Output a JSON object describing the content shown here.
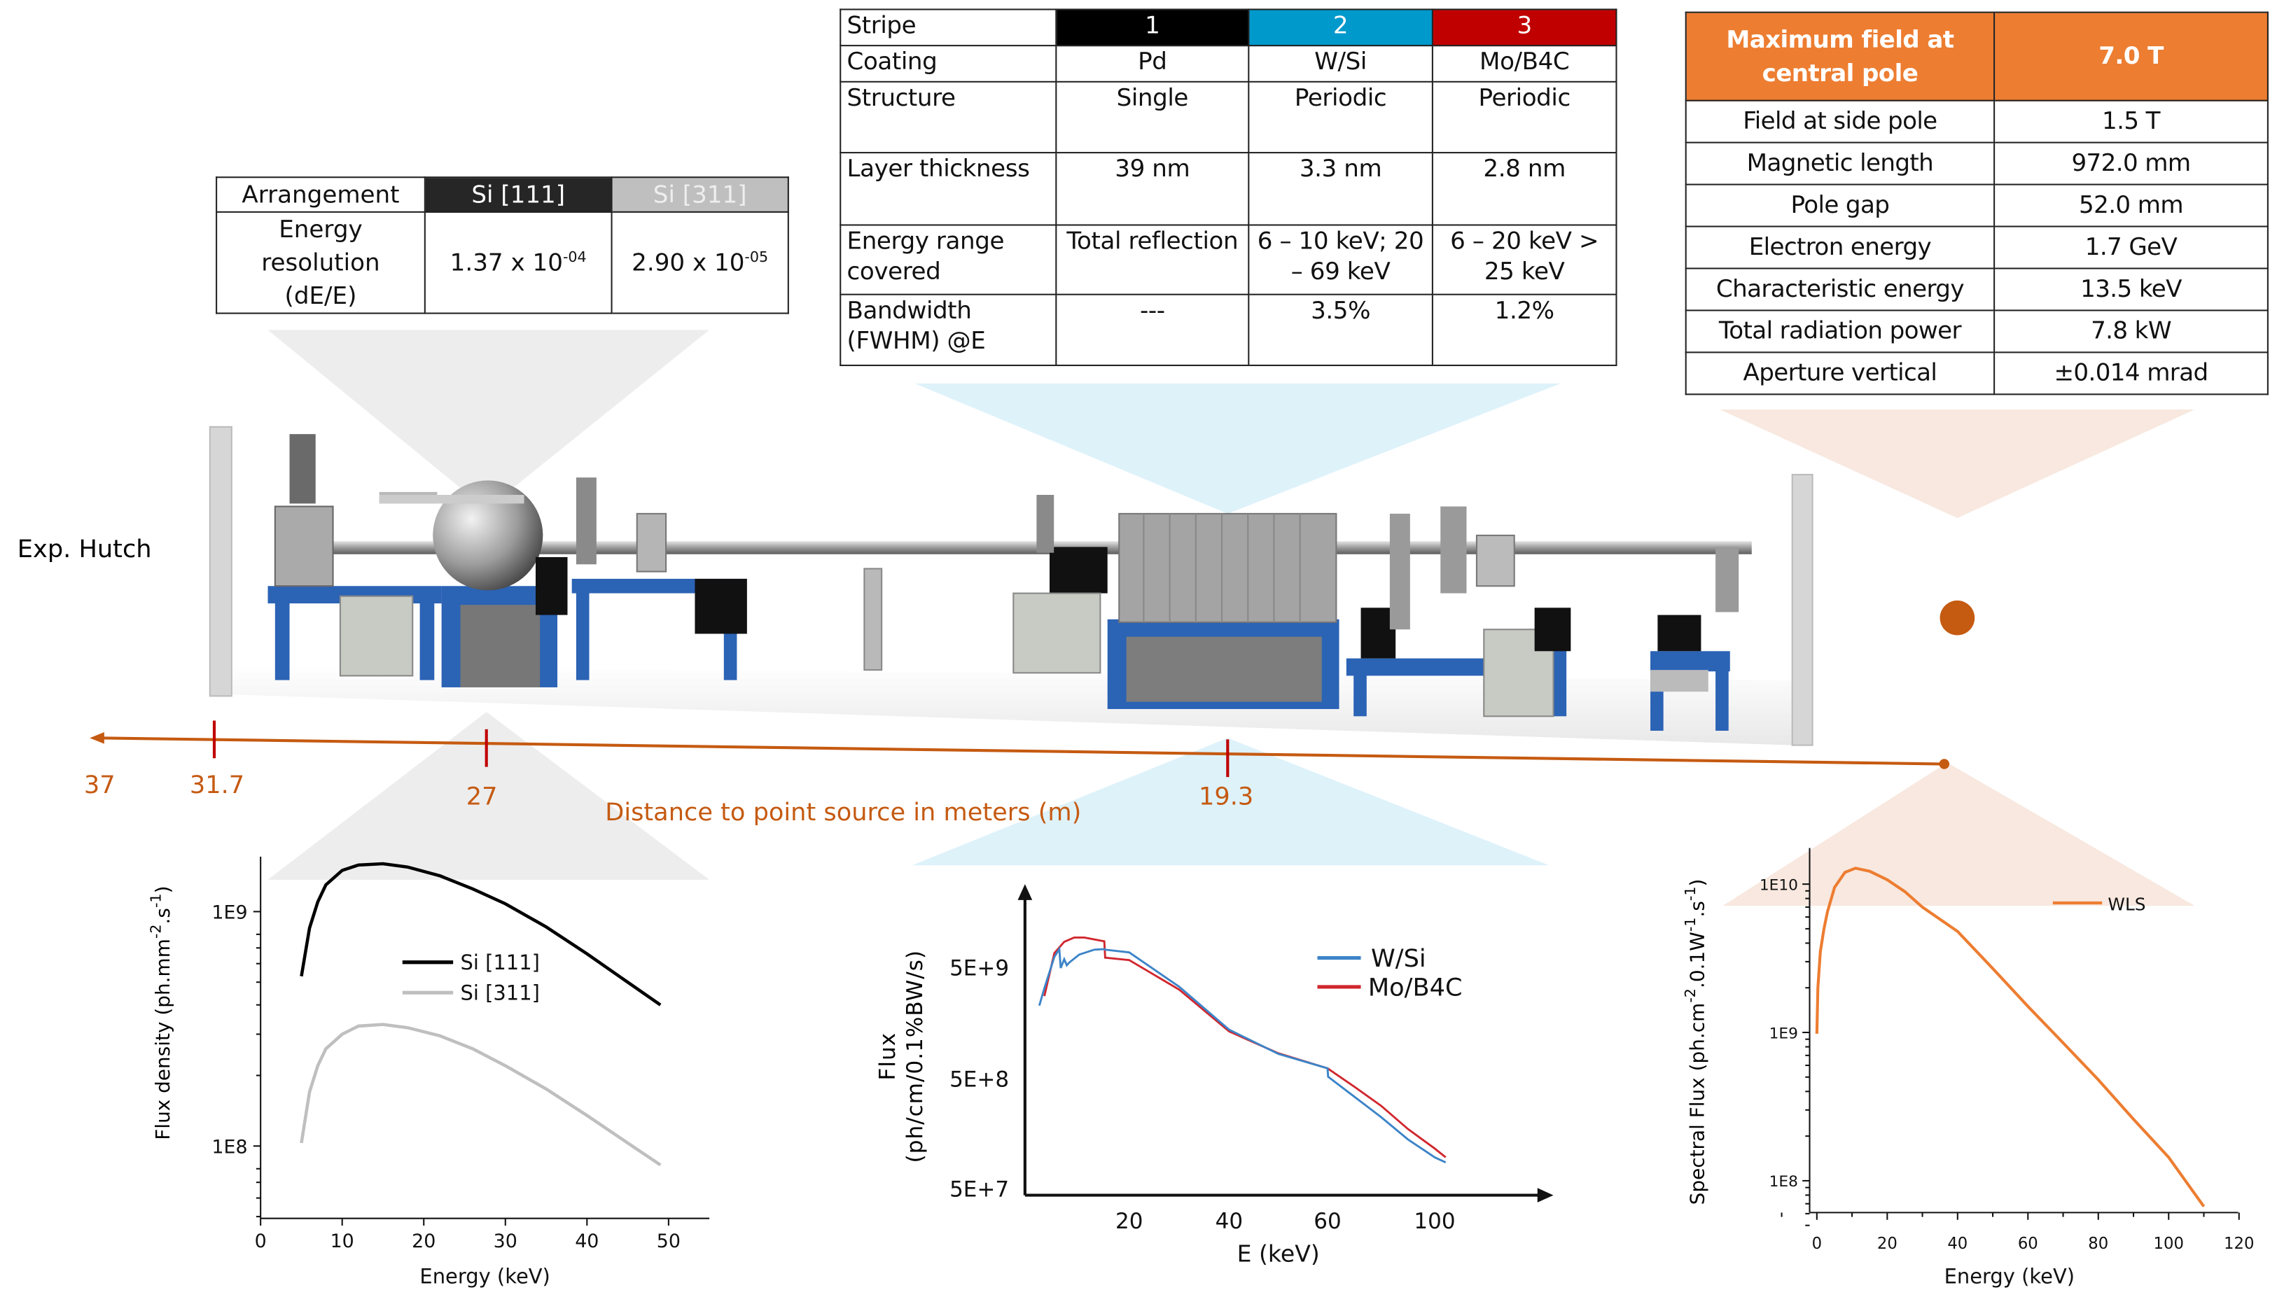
{
  "colors": {
    "stripe1": "#000000",
    "stripe2": "#0099cc",
    "stripe3": "#c00000",
    "wls_header": "#ed7d31",
    "axis": "#c55a11",
    "si111": "#000000",
    "si311": "#bfbfbf",
    "wsi": "#3c84c8",
    "mob4c": "#d1272e",
    "wls": "#ed7d31"
  },
  "mono_table": {
    "header": [
      "Arrangement",
      "Si [111]",
      "Si [311]"
    ],
    "row_label": "Energy resolution (dE/E)",
    "values": [
      {
        "mantissa": "1.37 x 10",
        "exp": "-04"
      },
      {
        "mantissa": "2.90 x 10",
        "exp": "-05"
      }
    ]
  },
  "mirror_table": {
    "rows": [
      [
        "Stripe",
        "1",
        "2",
        "3"
      ],
      [
        "Coating",
        "Pd",
        "W/Si",
        "Mo/B4C"
      ],
      [
        "Structure",
        "Single",
        "Periodic",
        "Periodic"
      ],
      [
        "Layer thickness",
        "39 nm",
        "3.3 nm",
        "2.8 nm"
      ],
      [
        "Energy range covered",
        "Total reflection",
        "6 – 10 keV; 20 – 69 keV",
        "6 – 20 keV > 25 keV"
      ],
      [
        "Bandwidth (FWHM) @E",
        "---",
        "3.5%",
        "1.2%"
      ]
    ]
  },
  "wls_table": {
    "header": [
      "Maximum field at central pole",
      "7.0 T"
    ],
    "rows": [
      [
        "Field at side pole",
        "1.5 T"
      ],
      [
        "Magnetic length",
        "972.0 mm"
      ],
      [
        "Pole gap",
        "52.0 mm"
      ],
      [
        "Electron energy",
        "1.7 GeV"
      ],
      [
        "Characteristic energy",
        "13.5 keV"
      ],
      [
        "Total radiation power",
        "7.8 kW"
      ],
      [
        "Aperture vertical",
        "±0.014 mrad"
      ]
    ]
  },
  "beamline": {
    "hutch_label": "Exp. Hutch",
    "axis_title": "Distance to point source in meters (m)",
    "distance_labels": [
      "37",
      "31.7",
      "27",
      "19.3"
    ]
  },
  "chart_data": [
    {
      "type": "line",
      "xlabel": "Energy (keV)",
      "ylabel": "Flux density (ph.mm-2.s-1)",
      "ylabel_parts": {
        "base": "Flux density (ph.mm",
        "sup1": "-2",
        "mid": ".s",
        "sup2": "-1",
        "end": ")"
      },
      "yscale": "log",
      "xlim": [
        0,
        55
      ],
      "ylim": [
        49000000.0,
        1900000000.0
      ],
      "xticks": [
        "0",
        "10",
        "20",
        "30",
        "40",
        "50"
      ],
      "yticks": [
        {
          "label": "1E9",
          "value": 1000000000.0
        },
        {
          "label": "1E8",
          "value": 100000000.0
        }
      ],
      "legend": "center",
      "series": [
        {
          "name": "Si [111]",
          "x": [
            5,
            6,
            7,
            8,
            10,
            12,
            15,
            18,
            22,
            26,
            30,
            35,
            40,
            45,
            49
          ],
          "y": [
            530000000.0,
            850000000.0,
            1100000000.0,
            1300000000.0,
            1500000000.0,
            1580000000.0,
            1600000000.0,
            1550000000.0,
            1420000000.0,
            1250000000.0,
            1080000000.0,
            860000000.0,
            660000000.0,
            500000000.0,
            400000000.0
          ]
        },
        {
          "name": "Si [311]",
          "x": [
            5,
            6,
            7,
            8,
            10,
            12,
            15,
            18,
            22,
            26,
            30,
            35,
            40,
            45,
            49
          ],
          "y": [
            103000000.0,
            170000000.0,
            220000000.0,
            260000000.0,
            300000000.0,
            325000000.0,
            330000000.0,
            320000000.0,
            295000000.0,
            260000000.0,
            220000000.0,
            175000000.0,
            135000000.0,
            103000000.0,
            83000000.0
          ]
        }
      ]
    },
    {
      "type": "line",
      "xlabel": "E (keV)",
      "ylabel": "Flux (ph/cm/0.1%BW/s)",
      "ylabel_lines": [
        "Flux",
        "(ph/cm/0.1%BW/s)"
      ],
      "yscale": "log",
      "xticks": [
        "20",
        "40",
        "60",
        "100"
      ],
      "yticks": [
        {
          "label": "5E+9",
          "value": 5000000000.0
        },
        {
          "label": "5E+8",
          "value": 500000000.0
        },
        {
          "label": "5E+7",
          "value": 50000000.0
        }
      ],
      "legend": "top-right",
      "series": [
        {
          "name": "W/Si",
          "x": [
            2,
            3,
            5,
            6,
            6.3,
            7,
            7.5,
            8,
            10,
            13,
            15,
            15.2,
            20,
            30,
            40,
            50,
            60,
            60.2,
            70,
            80,
            90,
            100,
            104
          ],
          "y": [
            2300000000.0,
            3300000000.0,
            6300000000.0,
            7400000000.0,
            5000000000.0,
            6000000000.0,
            5300000000.0,
            5600000000.0,
            6600000000.0,
            7300000000.0,
            7400000000.0,
            7300000000.0,
            6900000000.0,
            3400000000.0,
            1400000000.0,
            850000000.0,
            630000000.0,
            530000000.0,
            350000000.0,
            230000000.0,
            145000000.0,
            100000000.0,
            90000000.0
          ]
        },
        {
          "name": "Mo/B4C",
          "x": [
            3,
            5,
            7,
            9,
            11,
            15,
            15.2,
            20,
            30,
            40,
            50,
            60,
            70,
            80,
            90,
            100,
            104
          ],
          "y": [
            2800000000.0,
            6800000000.0,
            8600000000.0,
            9400000000.0,
            9400000000.0,
            8700000000.0,
            6200000000.0,
            5900000000.0,
            3200000000.0,
            1350000000.0,
            860000000.0,
            630000000.0,
            430000000.0,
            290000000.0,
            180000000.0,
            120000000.0,
            100000000.0
          ]
        }
      ]
    },
    {
      "type": "line",
      "xlabel": "Energy (keV)",
      "ylabel": "Spectral Flux (ph.cm-2.0.1W-1.s-1)",
      "ylabel_parts": {
        "base": "Spectral Flux (ph.cm",
        "sup1": "-2",
        "mid": ".0.1W",
        "sup2": "-1",
        "mid2": ".s",
        "sup3": "-1",
        "end": ")"
      },
      "yscale": "log",
      "xlim": [
        -10,
        120
      ],
      "ylim": [
        45000000.0,
        18000000000.0
      ],
      "xticks": [
        "0",
        "20",
        "40",
        "60",
        "80",
        "100",
        "120"
      ],
      "yticks": [
        {
          "label": "1E10",
          "value": 10000000000.0
        },
        {
          "label": "1E9",
          "value": 1000000000.0
        },
        {
          "label": "1E8",
          "value": 100000000.0
        }
      ],
      "legend": "top-right",
      "series": [
        {
          "name": "WLS",
          "x": [
            0,
            0.3,
            1,
            2,
            3,
            5,
            8,
            11,
            15,
            20,
            25,
            30,
            40,
            50,
            60,
            70,
            80,
            90,
            100,
            110
          ],
          "y": [
            980000000.0,
            2000000000.0,
            3500000000.0,
            5000000000.0,
            6500000000.0,
            9500000000.0,
            12000000000.0,
            12800000000.0,
            12200000000.0,
            10700000000.0,
            8900000000.0,
            7000000000.0,
            4800000000.0,
            2700000000.0,
            1500000000.0,
            850000000.0,
            480000000.0,
            260000000.0,
            144000000.0,
            67000000.0
          ]
        }
      ]
    }
  ]
}
